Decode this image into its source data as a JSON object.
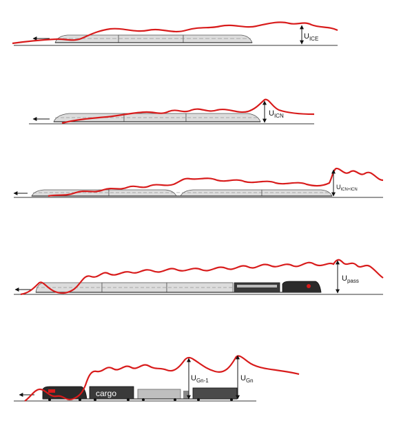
{
  "panels": [
    {
      "id": "ice",
      "train": "ICE",
      "labels": [
        {
          "main": "U",
          "sub": "ICE"
        }
      ]
    },
    {
      "id": "icn",
      "train": "ICN",
      "labels": [
        {
          "main": "U",
          "sub": "ICN"
        }
      ]
    },
    {
      "id": "icn-double",
      "train": "ICN+ICN",
      "labels": [
        {
          "main": "U",
          "sub": "ICN+ICN"
        }
      ]
    },
    {
      "id": "passenger",
      "train": "pass",
      "labels": [
        {
          "main": "U",
          "sub": "pass"
        }
      ]
    },
    {
      "id": "freight",
      "train": "Gn",
      "wagon_text": "cargo",
      "labels": [
        {
          "main": "U",
          "sub": "Gn-1"
        },
        {
          "main": "U",
          "sub": "Gn"
        }
      ]
    }
  ],
  "colors": {
    "wave": "#d81b1b",
    "train_body": "#d9d9d9",
    "train_dark": "#2b2b2b",
    "freight_grey": "#bfbfbf",
    "track": "#333333"
  },
  "icons": {
    "direction": "left-arrow-icon",
    "amplitude": "double-headed-arrow-icon"
  }
}
